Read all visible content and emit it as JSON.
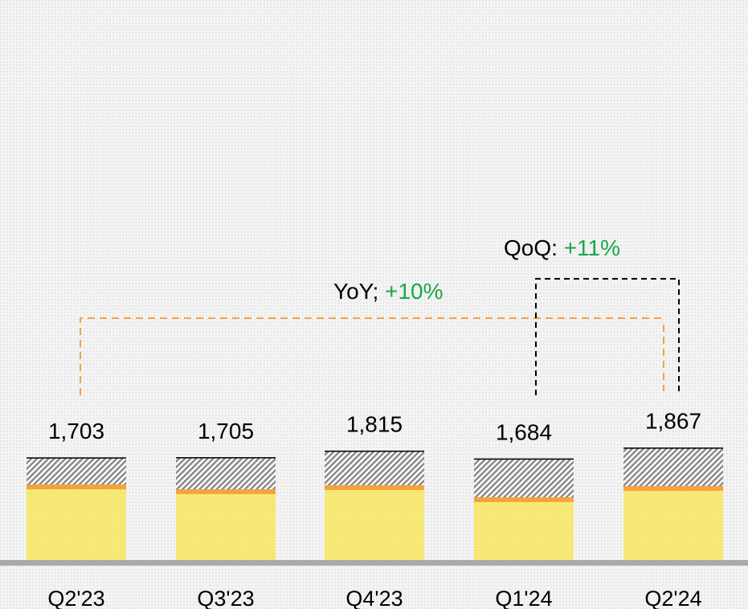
{
  "chart_data": {
    "type": "stacked_bar",
    "categories": [
      "Q2'23",
      "Q3'23",
      "Q4'23",
      "Q1'24",
      "Q2'24"
    ],
    "totals": [
      1703,
      1705,
      1815,
      1684,
      1867
    ],
    "total_labels": [
      "1,703",
      "1,705",
      "1,815",
      "1,684",
      "1,867"
    ],
    "series": [
      {
        "color": "#f7ea7a",
        "values": [
          1180,
          1100,
          1167,
          966,
          1153
        ]
      },
      {
        "color": "#f6a23c",
        "values": [
          80,
          80,
          80,
          80,
          80
        ]
      },
      {
        "color": "#9a9a9a",
        "values": [
          443,
          525,
          568,
          638,
          634
        ]
      }
    ],
    "annotations": [
      {
        "label": "YoY; ",
        "change": "+10%"
      },
      {
        "label": "QoQ: ",
        "change": "+11%"
      }
    ],
    "change_color": "#1aa64a"
  }
}
